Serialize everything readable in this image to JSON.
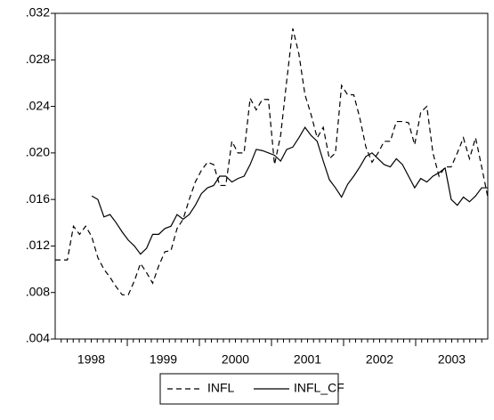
{
  "chart_data": {
    "type": "line",
    "categories": [
      "1998",
      null,
      null,
      null,
      null,
      null,
      null,
      null,
      null,
      null,
      null,
      null,
      "1999",
      null,
      null,
      null,
      null,
      null,
      null,
      null,
      null,
      null,
      null,
      null,
      "2000",
      null,
      null,
      null,
      null,
      null,
      null,
      null,
      null,
      null,
      null,
      null,
      "2001",
      null,
      null,
      null,
      null,
      null,
      null,
      null,
      null,
      null,
      null,
      null,
      "2002",
      null,
      null,
      null,
      null,
      null,
      null,
      null,
      null,
      null,
      null,
      null,
      "2003",
      null,
      null,
      null,
      null,
      null,
      null,
      null,
      null,
      null,
      null,
      null
    ],
    "series": [
      {
        "name": "INFL",
        "color": "#000000",
        "dash": "6,4",
        "values": [
          0.0108,
          0.0108,
          0.0108,
          0.0137,
          0.013,
          0.0137,
          0.0128,
          0.011,
          0.01,
          0.0093,
          0.0085,
          0.0078,
          0.0078,
          0.009,
          0.0105,
          0.0097,
          0.0088,
          0.0103,
          0.0115,
          0.0116,
          0.0135,
          0.0143,
          0.016,
          0.0175,
          0.0185,
          0.0192,
          0.019,
          0.0172,
          0.0172,
          0.021,
          0.02,
          0.02,
          0.0247,
          0.0237,
          0.0246,
          0.0246,
          0.019,
          0.0215,
          0.0262,
          0.0307,
          0.0285,
          0.025,
          0.0233,
          0.0213,
          0.0222,
          0.0195,
          0.02,
          0.0258,
          0.025,
          0.025,
          0.023,
          0.0205,
          0.0192,
          0.02,
          0.021,
          0.021,
          0.0227,
          0.0227,
          0.0226,
          0.0207,
          0.0235,
          0.024,
          0.02,
          0.018,
          0.0188,
          0.0188,
          0.02,
          0.0213,
          0.0195,
          0.0213,
          0.0188,
          0.0162
        ]
      },
      {
        "name": "INFL_CF",
        "color": "#000000",
        "dash": "none",
        "values": [
          null,
          null,
          null,
          null,
          null,
          null,
          0.0163,
          0.016,
          0.0145,
          0.0147,
          0.014,
          0.0132,
          0.0125,
          0.012,
          0.0113,
          0.0118,
          0.013,
          0.013,
          0.0135,
          0.0137,
          0.0147,
          0.0143,
          0.0147,
          0.0155,
          0.0165,
          0.017,
          0.0172,
          0.018,
          0.018,
          0.0175,
          0.0178,
          0.018,
          0.019,
          0.0203,
          0.0202,
          0.02,
          0.0198,
          0.0193,
          0.0203,
          0.0205,
          0.0213,
          0.0222,
          0.0215,
          0.021,
          0.0193,
          0.0177,
          0.017,
          0.0162,
          0.0173,
          0.018,
          0.0188,
          0.0197,
          0.02,
          0.0195,
          0.019,
          0.0188,
          0.0195,
          0.019,
          0.018,
          0.017,
          0.0178,
          0.0175,
          0.018,
          0.0183,
          0.0187,
          0.016,
          0.0155,
          0.0162,
          0.0158,
          0.0163,
          0.017,
          0.017
        ]
      }
    ],
    "ylim": [
      0.004,
      0.032
    ],
    "yticks": [
      {
        "value": 0.004,
        "label": ".004"
      },
      {
        "value": 0.008,
        "label": ".008"
      },
      {
        "value": 0.012,
        "label": ".012"
      },
      {
        "value": 0.016,
        "label": ".016"
      },
      {
        "value": 0.02,
        "label": ".020"
      },
      {
        "value": 0.024,
        "label": ".024"
      },
      {
        "value": 0.028,
        "label": ".028"
      },
      {
        "value": 0.032,
        "label": ".032"
      }
    ],
    "grid": false,
    "legend": "bottom"
  }
}
